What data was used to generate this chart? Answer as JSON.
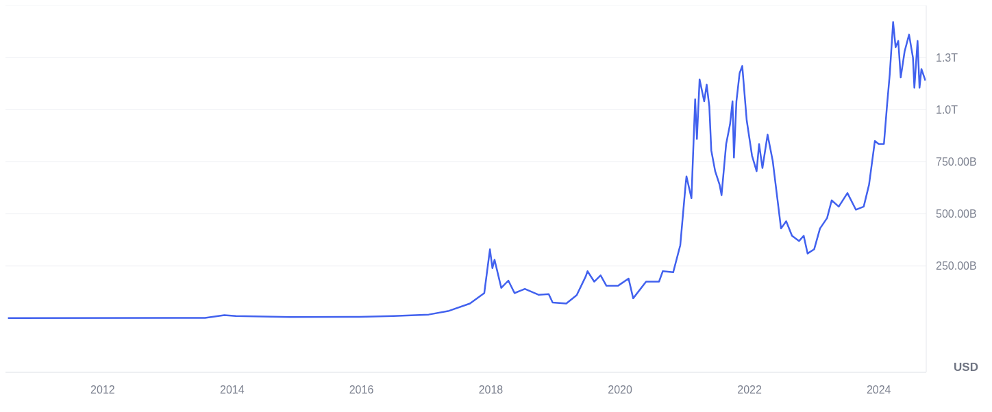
{
  "chart_data": {
    "type": "line",
    "ylabel": "USD",
    "grid": "y",
    "legend": false,
    "marker": "none",
    "line_style": "solid",
    "xlim": [
      "2010-07-01",
      "2024-09-25"
    ],
    "xticks": [
      "2012",
      "2014",
      "2016",
      "2018",
      "2020",
      "2022",
      "2024"
    ],
    "ylim": [
      -260000000000.0,
      1500000000000.0
    ],
    "yticks": [
      {
        "value": 250000000000.0,
        "label": "250.00B"
      },
      {
        "value": 500000000000.0,
        "label": "500.00B"
      },
      {
        "value": 750000000000.0,
        "label": "750.00B"
      },
      {
        "value": 1000000000000.0,
        "label": "1.0T"
      },
      {
        "value": 1250000000000.0,
        "label": "1.3T"
      }
    ],
    "x": [
      "2010-07-15",
      "2013-08-01",
      "2013-11-18",
      "2014-01-22",
      "2014-11-25",
      "2015-12-20",
      "2016-07-01",
      "2017-01-15",
      "2017-05-10",
      "2017-09-05",
      "2017-11-25",
      "2017-12-27",
      "2018-01-10",
      "2018-01-22",
      "2018-03-01",
      "2018-04-10",
      "2018-05-15",
      "2018-07-12",
      "2018-09-27",
      "2018-11-24",
      "2018-12-16",
      "2019-03-03",
      "2019-05-01",
      "2019-06-21",
      "2019-07-01",
      "2019-08-08",
      "2019-09-13",
      "2019-10-16",
      "2019-12-20",
      "2020-02-18",
      "2020-03-15",
      "2020-05-27",
      "2020-08-08",
      "2020-08-29",
      "2020-10-27",
      "2020-12-06",
      "2021-01-05",
      "2021-01-10",
      "2021-02-07",
      "2021-02-28",
      "2021-03-10",
      "2021-03-25",
      "2021-04-20",
      "2021-05-04",
      "2021-05-19",
      "2021-05-30",
      "2021-06-21",
      "2021-07-16",
      "2021-07-27",
      "2021-08-22",
      "2021-09-13",
      "2021-09-27",
      "2021-10-05",
      "2021-10-19",
      "2021-11-06",
      "2021-11-21",
      "2021-12-16",
      "2022-01-15",
      "2022-02-10",
      "2022-02-24",
      "2022-03-15",
      "2022-04-13",
      "2022-05-12",
      "2022-06-07",
      "2022-06-28",
      "2022-07-27",
      "2022-08-29",
      "2022-10-08",
      "2022-11-03",
      "2022-11-25",
      "2023-01-01",
      "2023-02-03",
      "2023-03-15",
      "2023-04-10",
      "2023-05-20",
      "2023-07-08",
      "2023-08-25",
      "2023-10-08",
      "2023-11-07",
      "2023-12-10",
      "2024-01-01",
      "2024-01-30",
      "2024-02-17",
      "2024-03-03",
      "2024-03-22",
      "2024-04-05",
      "2024-04-20",
      "2024-05-04",
      "2024-05-26",
      "2024-06-20",
      "2024-07-12",
      "2024-07-20",
      "2024-08-07",
      "2024-08-18",
      "2024-08-29",
      "2024-09-20"
    ],
    "series": [
      {
        "color": "#4161ee",
        "values": [
          0,
          1000000000.0,
          14000000000.0,
          10000000000.0,
          5000000000.0,
          6000000000.0,
          10000000000.0,
          17000000000.0,
          35000000000.0,
          70000000000.0,
          120000000000.0,
          330000000000.0,
          240000000000.0,
          280000000000.0,
          145000000000.0,
          180000000000.0,
          120000000000.0,
          140000000000.0,
          112000000000.0,
          115000000000.0,
          75000000000.0,
          70000000000.0,
          110000000000.0,
          200000000000.0,
          225000000000.0,
          175000000000.0,
          205000000000.0,
          155000000000.0,
          155000000000.0,
          190000000000.0,
          95000000000.0,
          175000000000.0,
          175000000000.0,
          225000000000.0,
          220000000000.0,
          350000000000.0,
          640000000000.0,
          680000000000.0,
          575000000000.0,
          1050000000000.0,
          860000000000.0,
          1145000000000.0,
          1040000000000.0,
          1120000000000.0,
          1015000000000.0,
          805000000000.0,
          705000000000.0,
          640000000000.0,
          590000000000.0,
          835000000000.0,
          930000000000.0,
          1040000000000.0,
          770000000000.0,
          1040000000000.0,
          1175000000000.0,
          1210000000000.0,
          950000000000.0,
          780000000000.0,
          705000000000.0,
          835000000000.0,
          720000000000.0,
          880000000000.0,
          755000000000.0,
          575000000000.0,
          430000000000.0,
          465000000000.0,
          395000000000.0,
          370000000000.0,
          395000000000.0,
          310000000000.0,
          330000000000.0,
          430000000000.0,
          480000000000.0,
          565000000000.0,
          535000000000.0,
          600000000000.0,
          520000000000.0,
          535000000000.0,
          640000000000.0,
          850000000000.0,
          835000000000.0,
          835000000000.0,
          1025000000000.0,
          1170000000000.0,
          1420000000000.0,
          1300000000000.0,
          1330000000000.0,
          1155000000000.0,
          1280000000000.0,
          1360000000000.0,
          1250000000000.0,
          1105000000000.0,
          1330000000000.0,
          1105000000000.0,
          1195000000000.0,
          1140000000000.0
        ]
      }
    ]
  }
}
